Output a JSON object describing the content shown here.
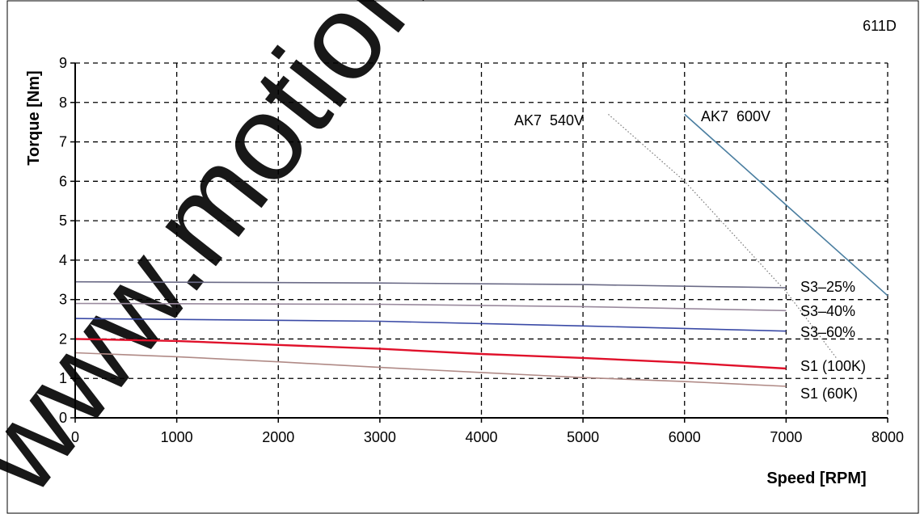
{
  "chart_data": {
    "type": "line",
    "title": "611D",
    "xlabel": "Speed [RPM]",
    "ylabel": "Torque [Nm]",
    "xlim": [
      0,
      8000
    ],
    "ylim": [
      0,
      9
    ],
    "xticks": [
      0,
      1000,
      2000,
      3000,
      4000,
      5000,
      6000,
      7000,
      8000
    ],
    "yticks": [
      0,
      1,
      2,
      3,
      4,
      5,
      6,
      7,
      8,
      9
    ],
    "grid": true,
    "series": [
      {
        "name": "S3–25%",
        "color": "#6a6a86",
        "style": "solid",
        "x": [
          0,
          3000,
          5000,
          6500,
          7000
        ],
        "y": [
          3.45,
          3.42,
          3.38,
          3.32,
          3.3
        ]
      },
      {
        "name": "S3–40%",
        "color": "#9a8a9e",
        "style": "solid",
        "x": [
          0,
          3000,
          5000,
          7000
        ],
        "y": [
          2.9,
          2.88,
          2.82,
          2.72
        ]
      },
      {
        "name": "S3–60%",
        "color": "#3a4aa6",
        "style": "solid",
        "x": [
          0,
          3000,
          5000,
          7000
        ],
        "y": [
          2.52,
          2.45,
          2.33,
          2.2
        ]
      },
      {
        "name": "S1 (100K)",
        "color": "#e0102a",
        "style": "solid",
        "x": [
          0,
          1000,
          2000,
          3000,
          4000,
          5000,
          6000,
          7000
        ],
        "y": [
          2.0,
          1.95,
          1.85,
          1.75,
          1.62,
          1.52,
          1.4,
          1.25
        ]
      },
      {
        "name": "S1 (60K)",
        "color": "#b08a86",
        "style": "solid",
        "x": [
          0,
          1000,
          2000,
          3000,
          4000,
          5000,
          6000,
          7000
        ],
        "y": [
          1.65,
          1.55,
          1.42,
          1.28,
          1.15,
          1.02,
          0.92,
          0.8
        ]
      },
      {
        "name": "AK7  540V",
        "color": "#777777",
        "style": "dotted",
        "x": [
          5250,
          6000,
          7000,
          7500
        ],
        "y": [
          7.7,
          6.0,
          3.2,
          1.5
        ]
      },
      {
        "name": "AK7  600V",
        "color": "#4a7ea0",
        "style": "solid",
        "x": [
          6000,
          7000,
          8000
        ],
        "y": [
          7.7,
          5.4,
          3.1
        ]
      }
    ],
    "annotations": [
      "AK7  540V",
      "AK7  600V",
      "S3–25%",
      "S3–40%",
      "S3–60%",
      "S1 (100K)",
      "S1 (60K)"
    ]
  },
  "watermark": "www.motion-c"
}
